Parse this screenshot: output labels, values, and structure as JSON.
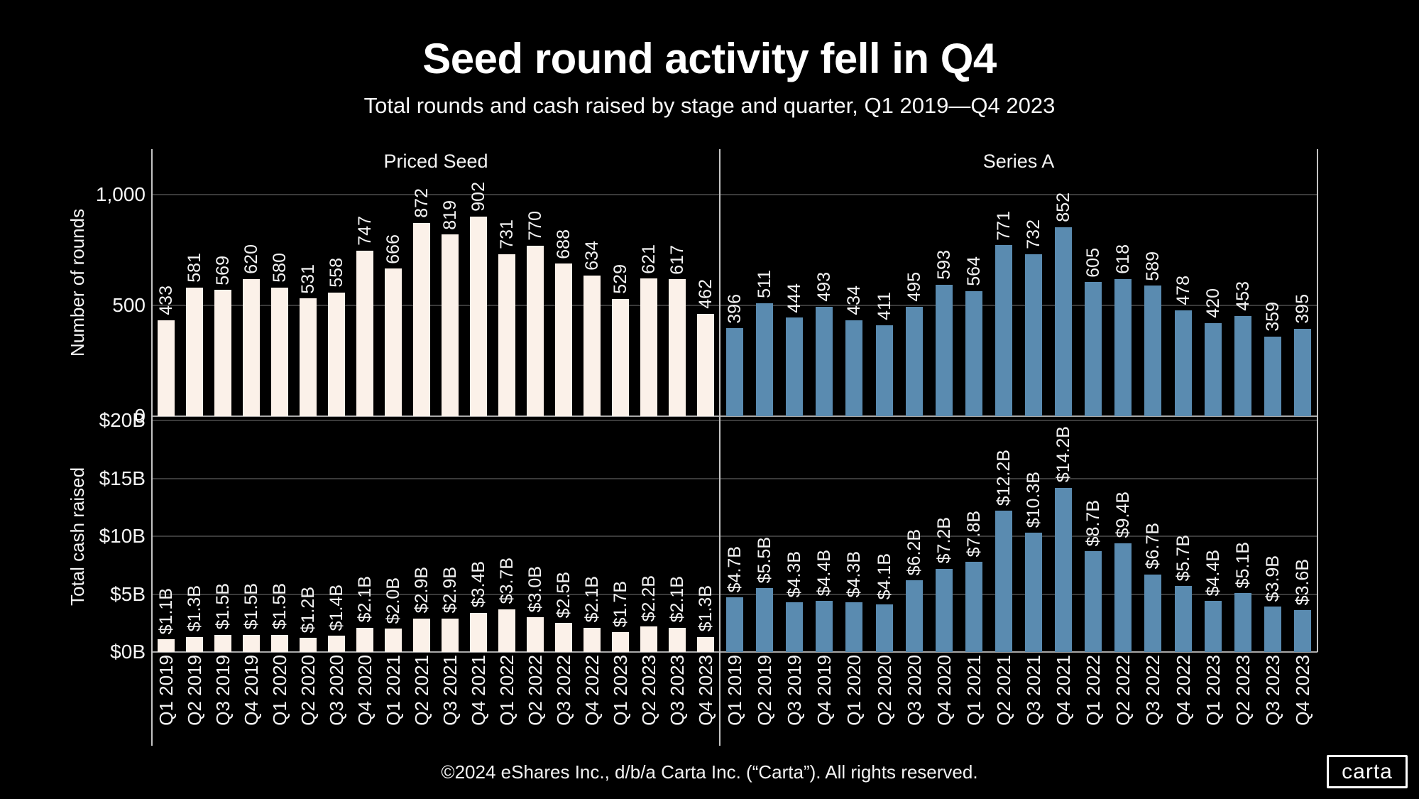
{
  "header": {
    "title": "Seed round activity fell in Q4",
    "subtitle": "Total rounds and cash raised by stage and quarter, Q1 2019—Q4 2023"
  },
  "footer": {
    "copyright": "©2024 eShares Inc., d/b/a Carta Inc. (“Carta”). All rights reserved.",
    "logo_text": "carta"
  },
  "colors": {
    "background": "#000000",
    "priced_seed_bar": "#FBF1E9",
    "series_a_bar": "#5A8BB0",
    "gridline": "#3A3A3A",
    "axis_line": "#A8A8A8",
    "spine": "#C4C4C4",
    "text": "#F5F5F5"
  },
  "chart_data": {
    "type": "bar",
    "categories": [
      "Q1 2019",
      "Q2 2019",
      "Q3 2019",
      "Q4 2019",
      "Q1 2020",
      "Q2 2020",
      "Q3 2020",
      "Q4 2020",
      "Q1 2021",
      "Q2 2021",
      "Q3 2021",
      "Q4 2021",
      "Q1 2022",
      "Q2 2022",
      "Q3 2022",
      "Q4 2022",
      "Q1 2023",
      "Q2 2023",
      "Q3 2023",
      "Q4 2023"
    ],
    "rows": [
      {
        "ylabel": "Number of rounds",
        "ylim": [
          0,
          1200
        ],
        "grid": true,
        "ticks": [
          {
            "v": 1000,
            "label": "1,000"
          },
          {
            "v": 500,
            "label": "500"
          },
          {
            "v": 0,
            "label": "0"
          }
        ]
      },
      {
        "ylabel": "Total cash raised",
        "ylim": [
          0,
          20
        ],
        "grid": true,
        "ticks": [
          {
            "v": 20,
            "label": "$20B"
          },
          {
            "v": 15,
            "label": "$15B"
          },
          {
            "v": 10,
            "label": "$10B"
          },
          {
            "v": 5,
            "label": "$5B"
          },
          {
            "v": 0,
            "label": "$0B"
          }
        ]
      }
    ],
    "panels": [
      {
        "label": "Priced Seed",
        "color": "#FBF1E9",
        "metrics": [
          {
            "name": "Number of rounds",
            "values": [
              433,
              581,
              569,
              620,
              580,
              531,
              558,
              747,
              666,
              872,
              819,
              902,
              731,
              770,
              688,
              634,
              529,
              621,
              617,
              462
            ],
            "labels": [
              "433",
              "581",
              "569",
              "620",
              "580",
              "531",
              "558",
              "747",
              "666",
              "872",
              "819",
              "902",
              "731",
              "770",
              "688",
              "634",
              "529",
              "621",
              "617",
              "462"
            ]
          },
          {
            "name": "Total cash raised ($B)",
            "values": [
              1.1,
              1.3,
              1.5,
              1.5,
              1.5,
              1.2,
              1.4,
              2.1,
              2.0,
              2.9,
              2.9,
              3.4,
              3.7,
              3.0,
              2.5,
              2.1,
              1.7,
              2.2,
              2.1,
              1.3
            ],
            "labels": [
              "$1.1B",
              "$1.3B",
              "$1.5B",
              "$1.5B",
              "$1.5B",
              "$1.2B",
              "$1.4B",
              "$2.1B",
              "$2.0B",
              "$2.9B",
              "$2.9B",
              "$3.4B",
              "$3.7B",
              "$3.0B",
              "$2.5B",
              "$2.1B",
              "$1.7B",
              "$2.2B",
              "$2.1B",
              "$1.3B"
            ]
          }
        ]
      },
      {
        "label": "Series A",
        "color": "#5A8BB0",
        "metrics": [
          {
            "name": "Number of rounds",
            "values": [
              396,
              511,
              444,
              493,
              434,
              411,
              495,
              593,
              564,
              771,
              732,
              852,
              605,
              618,
              589,
              478,
              420,
              453,
              359,
              395
            ],
            "labels": [
              "396",
              "511",
              "444",
              "493",
              "434",
              "411",
              "495",
              "593",
              "564",
              "771",
              "732",
              "852",
              "605",
              "618",
              "589",
              "478",
              "420",
              "453",
              "359",
              "395"
            ]
          },
          {
            "name": "Total cash raised ($B)",
            "values": [
              4.7,
              5.5,
              4.3,
              4.4,
              4.3,
              4.1,
              6.2,
              7.2,
              7.8,
              12.2,
              10.3,
              14.2,
              8.7,
              9.4,
              6.7,
              5.7,
              4.4,
              5.1,
              3.9,
              3.6
            ],
            "labels": [
              "$4.7B",
              "$5.5B",
              "$4.3B",
              "$4.4B",
              "$4.3B",
              "$4.1B",
              "$6.2B",
              "$7.2B",
              "$7.8B",
              "$12.2B",
              "$10.3B",
              "$14.2B",
              "$8.7B",
              "$9.4B",
              "$6.7B",
              "$5.7B",
              "$4.4B",
              "$5.1B",
              "$3.9B",
              "$3.6B"
            ]
          }
        ]
      }
    ]
  }
}
